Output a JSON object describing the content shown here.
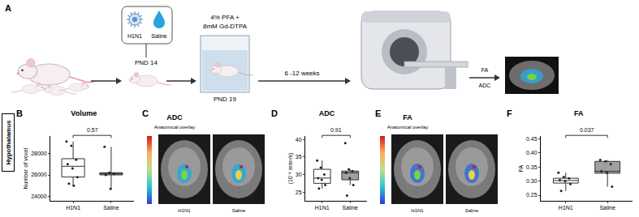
{
  "figure": {
    "panel_a": {
      "label": "A",
      "pnd14": "PND 14",
      "infection": [
        "H1N1",
        "Saline"
      ],
      "fixation": [
        "4% PFA +",
        "8mM Gd-DTPA"
      ],
      "pnd19": "PND 19",
      "interval": "6 -12 weeks",
      "outputs": [
        "FA",
        "ADC"
      ]
    },
    "region": "Hypothalamus",
    "images": [
      {
        "label": "C",
        "title": "ADC",
        "subtitle": "Anatomical overlay",
        "groups": [
          "H1N1",
          "Saline"
        ]
      },
      {
        "label": "E",
        "title": "FA",
        "subtitle": "Anatomical overlay",
        "groups": [
          "H1N1",
          "Saline"
        ]
      }
    ]
  },
  "chart_data": [
    {
      "label": "B",
      "type": "box",
      "title": "Volume",
      "y_label": "Number of voxel",
      "categories": [
        "H1N1",
        "Saline"
      ],
      "colors": [
        "#ffffff",
        "#a0a0a0"
      ],
      "q1": [
        25800,
        26000
      ],
      "median": [
        26800,
        26100
      ],
      "q3": [
        27500,
        26200
      ],
      "lower": [
        25000,
        24700
      ],
      "upper": [
        29100,
        28600
      ],
      "points": [
        [
          29100,
          28700,
          27400,
          27000,
          26600,
          25800,
          25200,
          25000
        ],
        [
          28600,
          26200,
          26100,
          26000,
          24700
        ]
      ],
      "p_value": "0.57",
      "ylim": [
        23600,
        29600
      ],
      "yticks": [
        24000,
        26000,
        28000
      ]
    },
    {
      "label": "D",
      "type": "box",
      "title": "ADC",
      "y_label": "(10⁻⁴ mm²/s)",
      "categories": [
        "H1N1",
        "Saline"
      ],
      "colors": [
        "#ffffff",
        "#a0a0a0"
      ],
      "q1": [
        27.5,
        28.5
      ],
      "median": [
        29,
        30.5
      ],
      "q3": [
        31.5,
        31
      ],
      "lower": [
        26,
        27
      ],
      "upper": [
        34,
        31.5
      ],
      "points": [
        [
          34,
          32,
          30,
          29,
          28.5,
          27,
          26
        ],
        [
          39,
          31.5,
          31,
          30.5,
          29,
          27,
          24
        ]
      ],
      "p_value": "0.91",
      "ylim": [
        22.5,
        41
      ],
      "yticks": [
        25,
        30,
        35,
        40
      ]
    },
    {
      "label": "F",
      "type": "box",
      "title": "FA",
      "y_label": "FA",
      "categories": [
        "H1N1",
        "Saline"
      ],
      "colors": [
        "#ffffff",
        "#a0a0a0"
      ],
      "q1": [
        0.293,
        0.328
      ],
      "median": [
        0.302,
        0.335
      ],
      "q3": [
        0.31,
        0.37
      ],
      "lower": [
        0.265,
        0.28
      ],
      "upper": [
        0.33,
        0.375
      ],
      "points": [
        [
          0.33,
          0.315,
          0.31,
          0.303,
          0.3,
          0.29,
          0.265
        ],
        [
          0.375,
          0.37,
          0.36,
          0.335,
          0.33,
          0.28
        ]
      ],
      "p_value": "0.037",
      "ylim": [
        0.23,
        0.46
      ],
      "yticks": [
        0.25,
        {
          "value": 0.3,
          "label": "0.30"
        },
        0.35,
        {
          "value": 0.4,
          "label": "0.40"
        },
        0.45
      ]
    }
  ]
}
